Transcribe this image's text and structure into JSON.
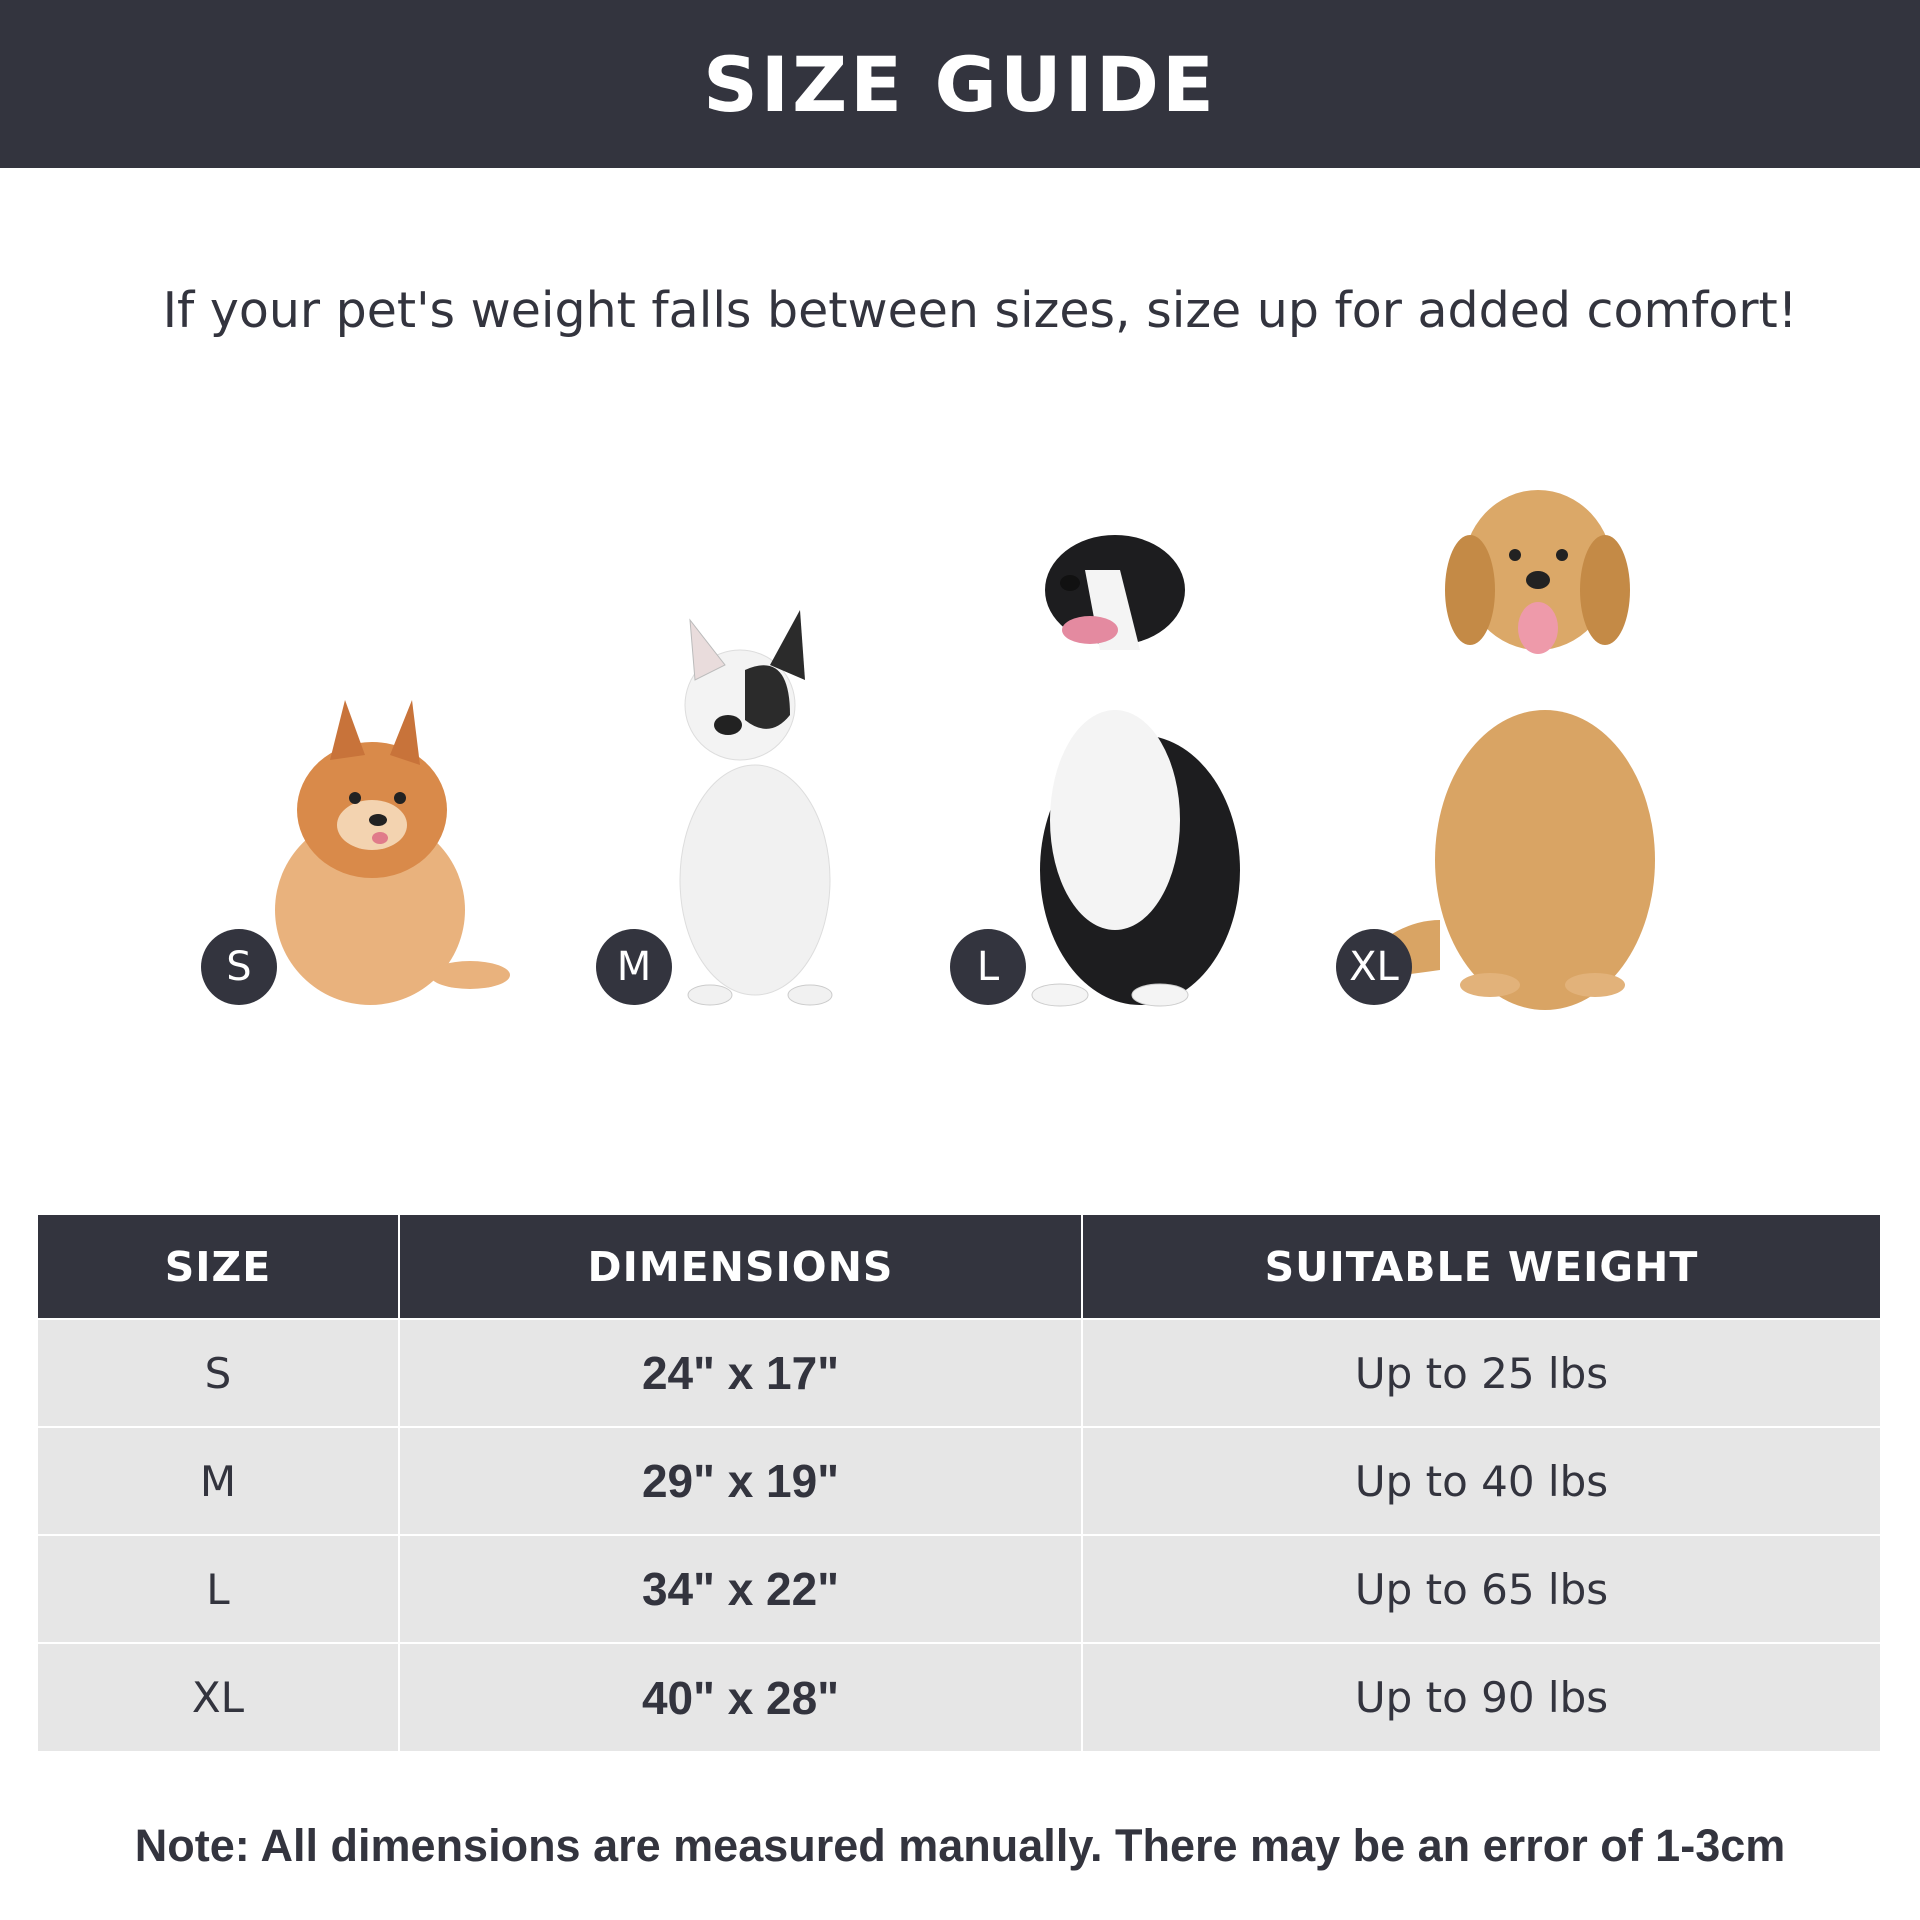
{
  "header": {
    "title": "SIZE GUIDE"
  },
  "subtitle": "If your pet's weight falls between sizes, size up for added comfort!",
  "dogs": [
    {
      "size": "S",
      "breed_image": "pomeranian-photo"
    },
    {
      "size": "M",
      "breed_image": "french-bulldog-photo"
    },
    {
      "size": "L",
      "breed_image": "border-collie-photo"
    },
    {
      "size": "XL",
      "breed_image": "golden-retriever-photo"
    }
  ],
  "table": {
    "headers": [
      "SIZE",
      "DIMENSIONS",
      "SUITABLE WEIGHT"
    ],
    "rows": [
      [
        "S",
        "24\" x 17\"",
        "Up to 25 lbs"
      ],
      [
        "M",
        "29\" x 19\"",
        "Up to 40 lbs"
      ],
      [
        "L",
        "34\" x 22\"",
        "Up to 65 lbs"
      ],
      [
        "XL",
        "40\" x 28\"",
        "Up to 90 lbs"
      ]
    ]
  },
  "note": "Note: All dimensions are measured manually. There may be an error of 1-3cm",
  "colors": {
    "dark": "#33343e",
    "row_bg": "#e6e6e6"
  }
}
